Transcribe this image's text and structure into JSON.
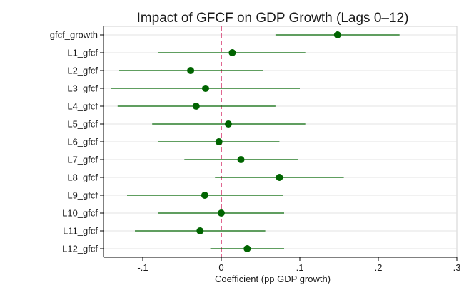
{
  "chart_data": {
    "type": "scatter",
    "subtype": "coefficient-plot",
    "title": "Impact of GFCF on GDP Growth (Lags 0–12)",
    "xlabel": "Coefficient (pp GDP growth)",
    "ylabel": "",
    "xlim": [
      -0.15,
      0.3
    ],
    "xticks": [
      -0.1,
      0,
      0.1,
      0.2,
      0.3
    ],
    "xtick_labels": [
      "-.1",
      "0",
      ".1",
      ".2",
      ".3"
    ],
    "reference_line": 0,
    "grid": true,
    "colors": {
      "marker": "#006400",
      "reference_line": "#d6336c",
      "grid": "#e3e3e3",
      "axis": "#000000"
    },
    "categories": [
      "gfcf_growth",
      "L1_gfcf",
      "L2_gfcf",
      "L3_gfcf",
      "L4_gfcf",
      "L5_gfcf",
      "L6_gfcf",
      "L7_gfcf",
      "L8_gfcf",
      "L9_gfcf",
      "L10_gfcf",
      "L11_gfcf",
      "L12_gfcf"
    ],
    "estimates": [
      0.148,
      0.014,
      -0.039,
      -0.02,
      -0.032,
      0.009,
      -0.003,
      0.025,
      0.074,
      -0.021,
      0.0,
      -0.027,
      0.033
    ],
    "ci_low": [
      0.069,
      -0.08,
      -0.13,
      -0.14,
      -0.132,
      -0.088,
      -0.08,
      -0.047,
      -0.008,
      -0.12,
      -0.08,
      -0.11,
      -0.014
    ],
    "ci_high": [
      0.227,
      0.107,
      0.053,
      0.1,
      0.069,
      0.107,
      0.074,
      0.098,
      0.156,
      0.079,
      0.08,
      0.056,
      0.08
    ]
  }
}
